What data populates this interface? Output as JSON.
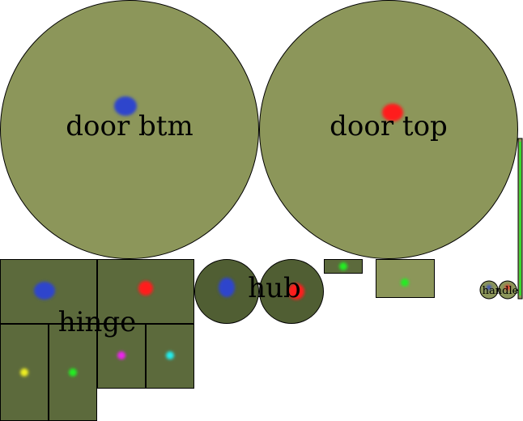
{
  "labels": {
    "door_btm": "door btm",
    "door_top": "door top",
    "hinge": "hinge",
    "hub": "hub",
    "handle": "handle"
  },
  "colors": {
    "door_fill": "#8c965a",
    "dark_fill": "#5c6a3c",
    "hub_fill": "#505e33",
    "marker_blue": "#2f45cc",
    "marker_red": "#ff1a1a",
    "marker_green": "#22ee22",
    "marker_yellow": "#eeee22",
    "marker_magenta": "#ee22ee",
    "marker_cyan": "#22eeee"
  }
}
